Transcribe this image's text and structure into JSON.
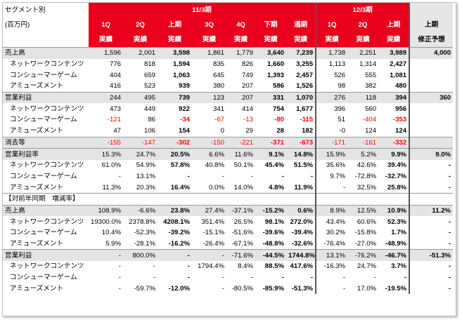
{
  "header": {
    "segment_label": "セグメント別",
    "unit_label": "(百万円)",
    "fy11_title": "11/3期",
    "fy12_title": "12/3期",
    "cols_fy11": [
      "1Q",
      "2Q",
      "上期",
      "3Q",
      "4Q",
      "下期",
      "通期"
    ],
    "cols_fy12": [
      "1Q",
      "2Q",
      "上期"
    ],
    "forecast_title": "上期",
    "actual": "実績",
    "forecast_sub": "修正予想"
  },
  "rows": [
    {
      "label": "売上高",
      "type": "gray",
      "indent": false,
      "v": [
        "1,596",
        "2,001",
        "3,598",
        "1,861",
        "1,779",
        "3,640",
        "7,239",
        "1,738",
        "2,251",
        "3,989",
        "4,000"
      ]
    },
    {
      "label": "ネットワークコンテンツ",
      "indent": true,
      "v": [
        "776",
        "818",
        "1,594",
        "835",
        "826",
        "1,660",
        "3,255",
        "1,113",
        "1,314",
        "2,427",
        ""
      ]
    },
    {
      "label": "コンシューマーゲーム",
      "indent": true,
      "v": [
        "404",
        "659",
        "1,063",
        "645",
        "749",
        "1,393",
        "2,457",
        "526",
        "555",
        "1,081",
        ""
      ]
    },
    {
      "label": "アミューズメント",
      "indent": true,
      "v": [
        "416",
        "523",
        "939",
        "380",
        "207",
        "586",
        "1,526",
        "98",
        "382",
        "480",
        ""
      ]
    },
    {
      "label": "営業利益",
      "type": "gray",
      "indent": false,
      "v": [
        "244",
        "495",
        "739",
        "123",
        "207",
        "331",
        "1,070",
        "276",
        "118",
        "394",
        "360"
      ]
    },
    {
      "label": "ネットワークコンテンツ",
      "indent": true,
      "v": [
        "473",
        "449",
        "922",
        "341",
        "414",
        "754",
        "1,677",
        "396",
        "560",
        "956",
        ""
      ]
    },
    {
      "label": "コンシューマーゲーム",
      "indent": true,
      "v": [
        "-121",
        "86",
        "-34",
        "-67",
        "-13",
        "-80",
        "-115",
        "51",
        "-404",
        "-353",
        ""
      ]
    },
    {
      "label": "アミューズメント",
      "indent": true,
      "v": [
        "47",
        "106",
        "154",
        "0",
        "29",
        "28",
        "182",
        "-0",
        "124",
        "124",
        ""
      ]
    },
    {
      "label": "消去等",
      "type": "gray",
      "indent": false,
      "v": [
        "-155",
        "-147",
        "-302",
        "-150",
        "-221",
        "-371",
        "-673",
        "-171",
        "-161",
        "-332",
        ""
      ]
    },
    {
      "label": "営業利益率",
      "type": "gray",
      "indent": false,
      "v": [
        "15.3%",
        "24.7%",
        "20.5%",
        "6.6%",
        "11.6%",
        "9.1%",
        "14.8%",
        "15.9%",
        "5.2%",
        "9.9%",
        "9.0%"
      ]
    },
    {
      "label": "ネットワークコンテンツ",
      "indent": true,
      "v": [
        "61.0%",
        "54.9%",
        "57.8%",
        "40.8%",
        "50.1%",
        "45.4%",
        "51.5%",
        "35.6%",
        "42.6%",
        "39.4%",
        "-"
      ]
    },
    {
      "label": "コンシューマーゲーム",
      "indent": true,
      "v": [
        "-",
        "13.1%",
        "-",
        "-",
        "-",
        "-",
        "-",
        "9.7%",
        "-72.8%",
        "-32.7%",
        "-"
      ]
    },
    {
      "label": "アミューズメント",
      "indent": true,
      "v": [
        "11.3%",
        "20.3%",
        "16.4%",
        "0.0%",
        "14.0%",
        "4.8%",
        "11.9%",
        "-",
        "32.5%",
        "25.8%",
        "-"
      ]
    },
    {
      "label": "【対前年同期　増減率】",
      "type": "section",
      "indent": false,
      "v": [
        "",
        "",
        "",
        "",
        "",
        "",
        "",
        "",
        "",
        "",
        ""
      ]
    },
    {
      "label": "売上高",
      "type": "gray",
      "indent": false,
      "v": [
        "108.9%",
        "-6.6%",
        "23.8%",
        "27.4%",
        "-37.1%",
        "-15.2%",
        "0.6%",
        "8.9%",
        "12.5%",
        "10.9%",
        "11.2%"
      ]
    },
    {
      "label": "ネットワークコンテンツ",
      "indent": true,
      "v": [
        "19300.0%",
        "2378.8%",
        "4208.1%",
        "351.4%",
        "26.5%",
        "98.1%",
        "272.0%",
        "43.4%",
        "60.6%",
        "52.3%",
        "-"
      ]
    },
    {
      "label": "コンシューマーゲーム",
      "indent": true,
      "v": [
        "10.4%",
        "-52.3%",
        "-39.2%",
        "-15.1%",
        "-51.6%",
        "-39.6%",
        "-39.4%",
        "30.2%",
        "-15.8%",
        "1.7%",
        "-"
      ]
    },
    {
      "label": "アミューズメント",
      "indent": true,
      "v": [
        "5.9%",
        "-28.1%",
        "-16.2%",
        "-26.4%",
        "-67.1%",
        "-48.8%",
        "-32.6%",
        "-76.4%",
        "-27.0%",
        "-48.9%",
        "-"
      ]
    },
    {
      "label": "営業利益",
      "type": "gray",
      "indent": false,
      "v": [
        "-",
        "800.0%",
        "-",
        "-",
        "-71.6%",
        "-44.5%",
        "1744.8%",
        "13.1%",
        "-76.2%",
        "-46.7%",
        "-51.3%"
      ]
    },
    {
      "label": "ネットワークコンテンツ",
      "indent": true,
      "v": [
        "-",
        "-",
        "-",
        "1794.4%",
        "8.4%",
        "88.5%",
        "417.6%",
        "-16.3%",
        "24.7%",
        "3.7%",
        "-"
      ]
    },
    {
      "label": "コンシューマーゲーム",
      "indent": true,
      "v": [
        "-",
        "-",
        "-",
        "-",
        "-",
        "-",
        "-",
        "-",
        "-",
        "-",
        "-"
      ]
    },
    {
      "label": "アミューズメント",
      "indent": true,
      "v": [
        "-",
        "-59.7%",
        "-12.0%",
        "-",
        "-80.5%",
        "-85.9%",
        "-51.3%",
        "-",
        "17.0%",
        "-19.5%",
        "-"
      ]
    }
  ],
  "negative_rows": [
    6,
    8
  ],
  "colors": {
    "accent": "#e8001c",
    "negative": "#ff0000",
    "gray_row": "#e4e4e4"
  }
}
